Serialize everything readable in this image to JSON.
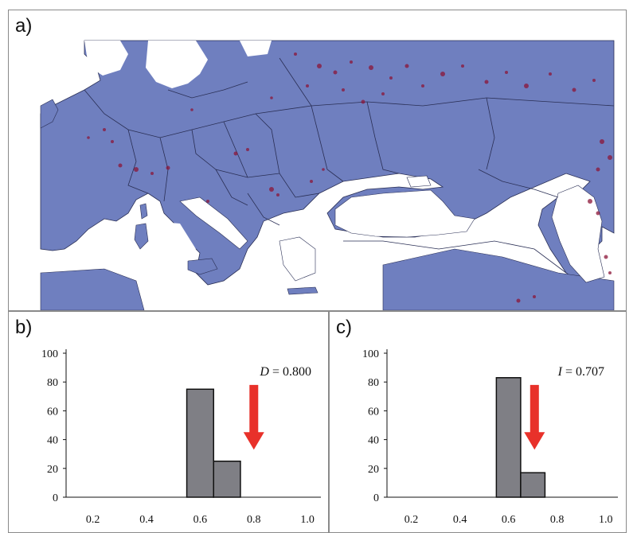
{
  "panels": {
    "a": {
      "label": "a)"
    },
    "b": {
      "label": "b)"
    },
    "c": {
      "label": "c)"
    }
  },
  "colors": {
    "land": "#6f7fbf",
    "land_dark": "#5b69a8",
    "borders": "#2a2f55",
    "hotspots": "#8b1538",
    "bar": "#7f7f85",
    "arrow": "#e8312a"
  },
  "map": {
    "icons": [
      "map-of-europe"
    ]
  },
  "chart_data": [
    {
      "type": "bar",
      "panel": "b",
      "bin_centers": [
        0.6,
        0.7
      ],
      "bin_width": 0.1,
      "values": [
        75,
        25
      ],
      "xticks": [
        "0.2",
        "0.4",
        "0.6",
        "0.8",
        "1.0"
      ],
      "xtick_values": [
        0.2,
        0.4,
        0.6,
        0.8,
        1.0
      ],
      "yticks": [
        "0",
        "20",
        "40",
        "60",
        "80",
        "100"
      ],
      "ylim": [
        0,
        100
      ],
      "xlim": [
        0.1,
        1.05
      ],
      "annotation": {
        "var": "D",
        "text": " = 0.800"
      },
      "observed_value": 0.8
    },
    {
      "type": "bar",
      "panel": "c",
      "bin_centers": [
        0.6,
        0.7
      ],
      "bin_width": 0.1,
      "values": [
        83,
        17
      ],
      "xticks": [
        "0.2",
        "0.4",
        "0.6",
        "0.8",
        "1.0"
      ],
      "xtick_values": [
        0.2,
        0.4,
        0.6,
        0.8,
        1.0
      ],
      "yticks": [
        "0",
        "20",
        "40",
        "60",
        "80",
        "100"
      ],
      "ylim": [
        0,
        100
      ],
      "xlim": [
        0.1,
        1.05
      ],
      "annotation": {
        "var": "I",
        "text": " = 0.707"
      },
      "observed_value": 0.707
    }
  ]
}
